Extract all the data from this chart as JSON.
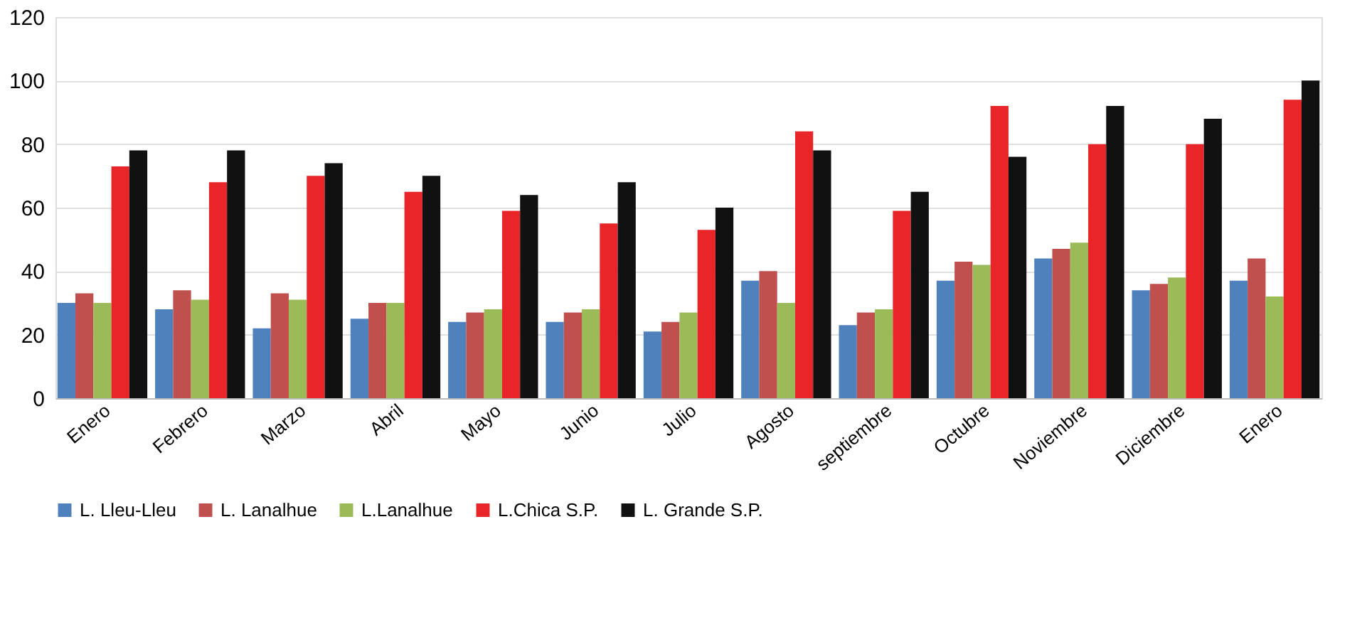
{
  "chart_data": {
    "type": "bar",
    "categories": [
      "Enero",
      "Febrero",
      "Marzo",
      "Abril",
      "Mayo",
      "Junio",
      "Julio",
      "Agosto",
      "septiembre",
      "Octubre",
      "Noviembre",
      "Diciembre",
      "Enero"
    ],
    "series": [
      {
        "name": "L. Lleu-Lleu",
        "color": "#4f81bd",
        "values": [
          30,
          28,
          22,
          25,
          24,
          24,
          21,
          37,
          23,
          37,
          44,
          34,
          37
        ]
      },
      {
        "name": "L. Lanalhue",
        "color": "#c0504d",
        "values": [
          33,
          34,
          33,
          30,
          27,
          27,
          24,
          40,
          27,
          43,
          47,
          36,
          44
        ]
      },
      {
        "name": "L.Lanalhue",
        "color": "#9bbb59",
        "values": [
          30,
          31,
          31,
          30,
          28,
          28,
          27,
          30,
          28,
          42,
          49,
          38,
          32
        ]
      },
      {
        "name": "L.Chica S.P.",
        "color": "#e8262a",
        "values": [
          73,
          68,
          70,
          65,
          59,
          55,
          53,
          84,
          59,
          92,
          80,
          80,
          94
        ]
      },
      {
        "name": "L. Grande S.P.",
        "color": "#111111",
        "values": [
          78,
          78,
          74,
          70,
          64,
          68,
          60,
          78,
          65,
          76,
          92,
          88,
          100
        ]
      }
    ],
    "ylim": [
      0,
      120
    ],
    "yticks": [
      0,
      20,
      40,
      60,
      80,
      100,
      120
    ],
    "grid": "y",
    "legend": "bottom"
  }
}
